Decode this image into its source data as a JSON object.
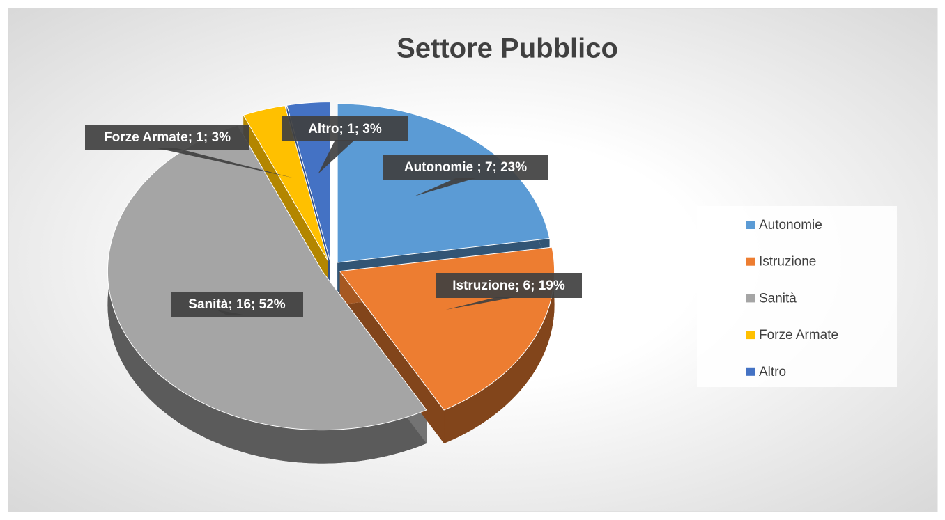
{
  "chart_data": {
    "type": "pie",
    "title": "Settore Pubblico",
    "categories": [
      "Autonomie",
      "Istruzione",
      "Sanità",
      "Forze Armate",
      "Altro"
    ],
    "values": [
      7,
      6,
      16,
      1,
      1
    ],
    "value_labels": [
      "Autonomie ; 7; 23%",
      "Istruzione; 6; 19%",
      "Sanità; 16; 52%",
      "Forze Armate; 1; 3%",
      "Altro; 1; 3%"
    ],
    "colors": [
      "#5b9bd5",
      "#ed7d31",
      "#a5a5a5",
      "#ffc000",
      "#4472c4"
    ],
    "legend": "right"
  }
}
